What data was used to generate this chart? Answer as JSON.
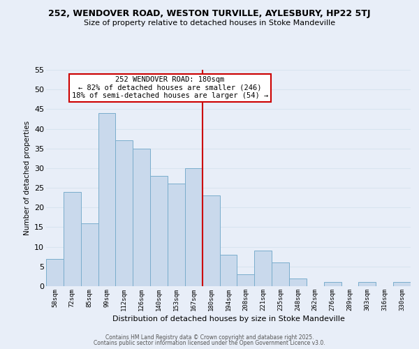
{
  "title": "252, WENDOVER ROAD, WESTON TURVILLE, AYLESBURY, HP22 5TJ",
  "subtitle": "Size of property relative to detached houses in Stoke Mandeville",
  "xlabel": "Distribution of detached houses by size in Stoke Mandeville",
  "ylabel": "Number of detached properties",
  "bin_labels": [
    "58sqm",
    "72sqm",
    "85sqm",
    "99sqm",
    "112sqm",
    "126sqm",
    "140sqm",
    "153sqm",
    "167sqm",
    "180sqm",
    "194sqm",
    "208sqm",
    "221sqm",
    "235sqm",
    "248sqm",
    "262sqm",
    "276sqm",
    "289sqm",
    "303sqm",
    "316sqm",
    "330sqm"
  ],
  "bar_heights": [
    7,
    24,
    16,
    44,
    37,
    35,
    28,
    26,
    30,
    23,
    8,
    3,
    9,
    6,
    2,
    0,
    1,
    0,
    1,
    0,
    1
  ],
  "bar_color": "#c9d9ec",
  "bar_edge_color": "#7aadcc",
  "grid_color": "#d8e4f0",
  "vline_color": "#cc0000",
  "annotation_title": "252 WENDOVER ROAD: 180sqm",
  "annotation_line1": "← 82% of detached houses are smaller (246)",
  "annotation_line2": "18% of semi-detached houses are larger (54) →",
  "annotation_box_edge": "#cc0000",
  "ylim": [
    0,
    55
  ],
  "yticks": [
    0,
    5,
    10,
    15,
    20,
    25,
    30,
    35,
    40,
    45,
    50,
    55
  ],
  "footer1": "Contains HM Land Registry data © Crown copyright and database right 2025.",
  "footer2": "Contains public sector information licensed under the Open Government Licence v3.0.",
  "bg_color": "#e8eef8"
}
